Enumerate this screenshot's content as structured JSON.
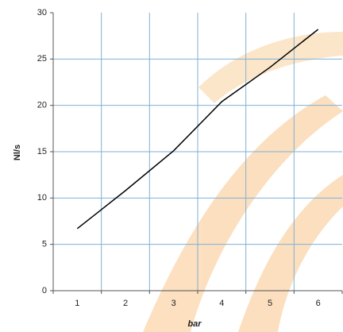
{
  "chart_data": {
    "type": "line",
    "x_label": "bar",
    "y_label": "Nl/s",
    "categories": [
      "1",
      "2",
      "3",
      "4",
      "5",
      "6"
    ],
    "series": [
      {
        "name": "Nl/s",
        "color": "#000000",
        "values": [
          6.7,
          10.8,
          15.1,
          20.4,
          24.1,
          28.2
        ]
      }
    ],
    "ylim": [
      0,
      30
    ],
    "yticks": [
      0,
      5,
      10,
      15,
      20,
      25,
      30
    ],
    "grid": true,
    "grid_color": "#7fb0d4"
  }
}
